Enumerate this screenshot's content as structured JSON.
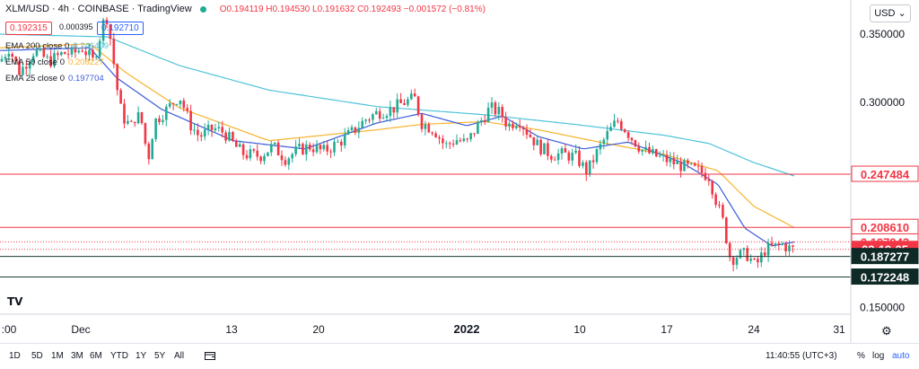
{
  "header": {
    "symbol": "XLM/USD · 4h · COINBASE · TradingView",
    "ohlc": "O0.194119 H0.194530 L0.191632 C0.192493 −0.001572 (−0.81%)",
    "bid": "0.192315",
    "spread": "0.000395",
    "ask": "0.192710"
  },
  "indicators": [
    {
      "label": "EMA 200 close 0",
      "value": "0.246409",
      "color": "#4fc3d9"
    },
    {
      "label": "EMA 50 close 0",
      "value": "0.208227",
      "color": "#f7b32b"
    },
    {
      "label": "EMA 25 close 0",
      "value": "0.197704",
      "color": "#3b5bdb"
    }
  ],
  "currency_button": "USD",
  "bottom": {
    "ranges": [
      "1D",
      "5D",
      "1M",
      "3M",
      "6M",
      "YTD",
      "1Y",
      "5Y",
      "All"
    ],
    "time": "11:40:55 (UTC+3)",
    "percent": "%",
    "log": "log",
    "auto": "auto"
  },
  "colors": {
    "up": "#22ab94",
    "down": "#f23645",
    "hline_red": "#f23645",
    "hline_dark": "#1e3b36",
    "countdown_bg": "#f23645"
  },
  "chart_data": {
    "type": "candlestick",
    "x_tick_labels": [
      ":00",
      "Dec",
      "13",
      "20",
      "2022",
      "10",
      "17",
      "24",
      "31"
    ],
    "y_tick_labels": [
      "0.350000",
      "0.300000",
      "0.150000"
    ],
    "ylim": [
      0.145,
      0.375
    ],
    "price_labels": [
      {
        "text": "0.247484",
        "value": 0.247484,
        "style": "red"
      },
      {
        "text": "0.208610",
        "value": 0.20861,
        "style": "red"
      },
      {
        "text": "0.197943",
        "value": 0.197943,
        "style": "red"
      },
      {
        "text": "03:19:05",
        "value": 0.192493,
        "style": "countdown"
      },
      {
        "text": "0.187277",
        "value": 0.187277,
        "style": "dark"
      },
      {
        "text": "0.172248",
        "value": 0.172248,
        "style": "dark"
      }
    ],
    "horizontal_lines": [
      {
        "value": 0.247484,
        "color": "#f23645",
        "style": "solid"
      },
      {
        "value": 0.20861,
        "color": "#f23645",
        "style": "solid"
      },
      {
        "value": 0.197943,
        "color": "#f23645",
        "style": "dotted"
      },
      {
        "value": 0.192493,
        "color": "#f23645",
        "style": "dotted"
      },
      {
        "value": 0.187277,
        "color": "#1e3b36",
        "style": "solid"
      },
      {
        "value": 0.172248,
        "color": "#1e3b36",
        "style": "solid"
      }
    ],
    "anchors": [
      [
        0,
        0.33
      ],
      [
        10,
        0.34
      ],
      [
        22,
        0.322
      ],
      [
        38,
        0.338
      ],
      [
        55,
        0.33
      ],
      [
        70,
        0.336
      ],
      [
        82,
        0.336
      ],
      [
        92,
        0.34
      ],
      [
        104,
        0.33
      ],
      [
        112,
        0.35
      ],
      [
        118,
        0.366
      ],
      [
        124,
        0.343
      ],
      [
        130,
        0.312
      ],
      [
        136,
        0.29
      ],
      [
        146,
        0.282
      ],
      [
        152,
        0.292
      ],
      [
        158,
        0.285
      ],
      [
        165,
        0.258
      ],
      [
        172,
        0.286
      ],
      [
        186,
        0.295
      ],
      [
        200,
        0.305
      ],
      [
        212,
        0.284
      ],
      [
        222,
        0.275
      ],
      [
        238,
        0.281
      ],
      [
        250,
        0.278
      ],
      [
        262,
        0.268
      ],
      [
        272,
        0.262
      ],
      [
        290,
        0.261
      ],
      [
        304,
        0.268
      ],
      [
        318,
        0.259
      ],
      [
        332,
        0.265
      ],
      [
        346,
        0.268
      ],
      [
        360,
        0.264
      ],
      [
        376,
        0.27
      ],
      [
        392,
        0.278
      ],
      [
        408,
        0.288
      ],
      [
        422,
        0.293
      ],
      [
        436,
        0.295
      ],
      [
        450,
        0.3
      ],
      [
        462,
        0.303
      ],
      [
        470,
        0.285
      ],
      [
        484,
        0.28
      ],
      [
        496,
        0.268
      ],
      [
        508,
        0.273
      ],
      [
        520,
        0.27
      ],
      [
        532,
        0.283
      ],
      [
        546,
        0.296
      ],
      [
        558,
        0.292
      ],
      [
        566,
        0.283
      ],
      [
        578,
        0.288
      ],
      [
        588,
        0.278
      ],
      [
        600,
        0.268
      ],
      [
        614,
        0.262
      ],
      [
        628,
        0.262
      ],
      [
        642,
        0.26
      ],
      [
        654,
        0.249
      ],
      [
        664,
        0.262
      ],
      [
        676,
        0.276
      ],
      [
        688,
        0.287
      ],
      [
        696,
        0.281
      ],
      [
        704,
        0.274
      ],
      [
        716,
        0.265
      ],
      [
        730,
        0.261
      ],
      [
        746,
        0.257
      ],
      [
        762,
        0.253
      ],
      [
        778,
        0.25
      ],
      [
        790,
        0.246
      ],
      [
        798,
        0.228
      ],
      [
        806,
        0.212
      ],
      [
        814,
        0.185
      ],
      [
        822,
        0.188
      ],
      [
        832,
        0.189
      ],
      [
        842,
        0.18
      ],
      [
        852,
        0.192
      ],
      [
        862,
        0.194
      ],
      [
        872,
        0.196
      ],
      [
        880,
        0.193
      ],
      [
        886,
        0.192
      ]
    ],
    "ema200": [
      [
        0,
        0.35
      ],
      [
        120,
        0.348
      ],
      [
        200,
        0.327
      ],
      [
        300,
        0.309
      ],
      [
        420,
        0.297
      ],
      [
        540,
        0.291
      ],
      [
        640,
        0.284
      ],
      [
        740,
        0.276
      ],
      [
        790,
        0.27
      ],
      [
        840,
        0.256
      ],
      [
        886,
        0.246
      ]
    ],
    "ema50": [
      [
        0,
        0.34
      ],
      [
        100,
        0.343
      ],
      [
        140,
        0.322
      ],
      [
        200,
        0.296
      ],
      [
        300,
        0.272
      ],
      [
        420,
        0.28
      ],
      [
        470,
        0.284
      ],
      [
        540,
        0.286
      ],
      [
        600,
        0.28
      ],
      [
        660,
        0.272
      ],
      [
        740,
        0.262
      ],
      [
        800,
        0.25
      ],
      [
        840,
        0.224
      ],
      [
        886,
        0.208
      ]
    ],
    "ema25": [
      [
        0,
        0.338
      ],
      [
        100,
        0.34
      ],
      [
        130,
        0.318
      ],
      [
        180,
        0.295
      ],
      [
        260,
        0.272
      ],
      [
        340,
        0.266
      ],
      [
        420,
        0.285
      ],
      [
        470,
        0.292
      ],
      [
        520,
        0.283
      ],
      [
        560,
        0.29
      ],
      [
        600,
        0.275
      ],
      [
        650,
        0.266
      ],
      [
        700,
        0.271
      ],
      [
        760,
        0.256
      ],
      [
        800,
        0.24
      ],
      [
        830,
        0.208
      ],
      [
        860,
        0.195
      ],
      [
        886,
        0.198
      ]
    ]
  }
}
